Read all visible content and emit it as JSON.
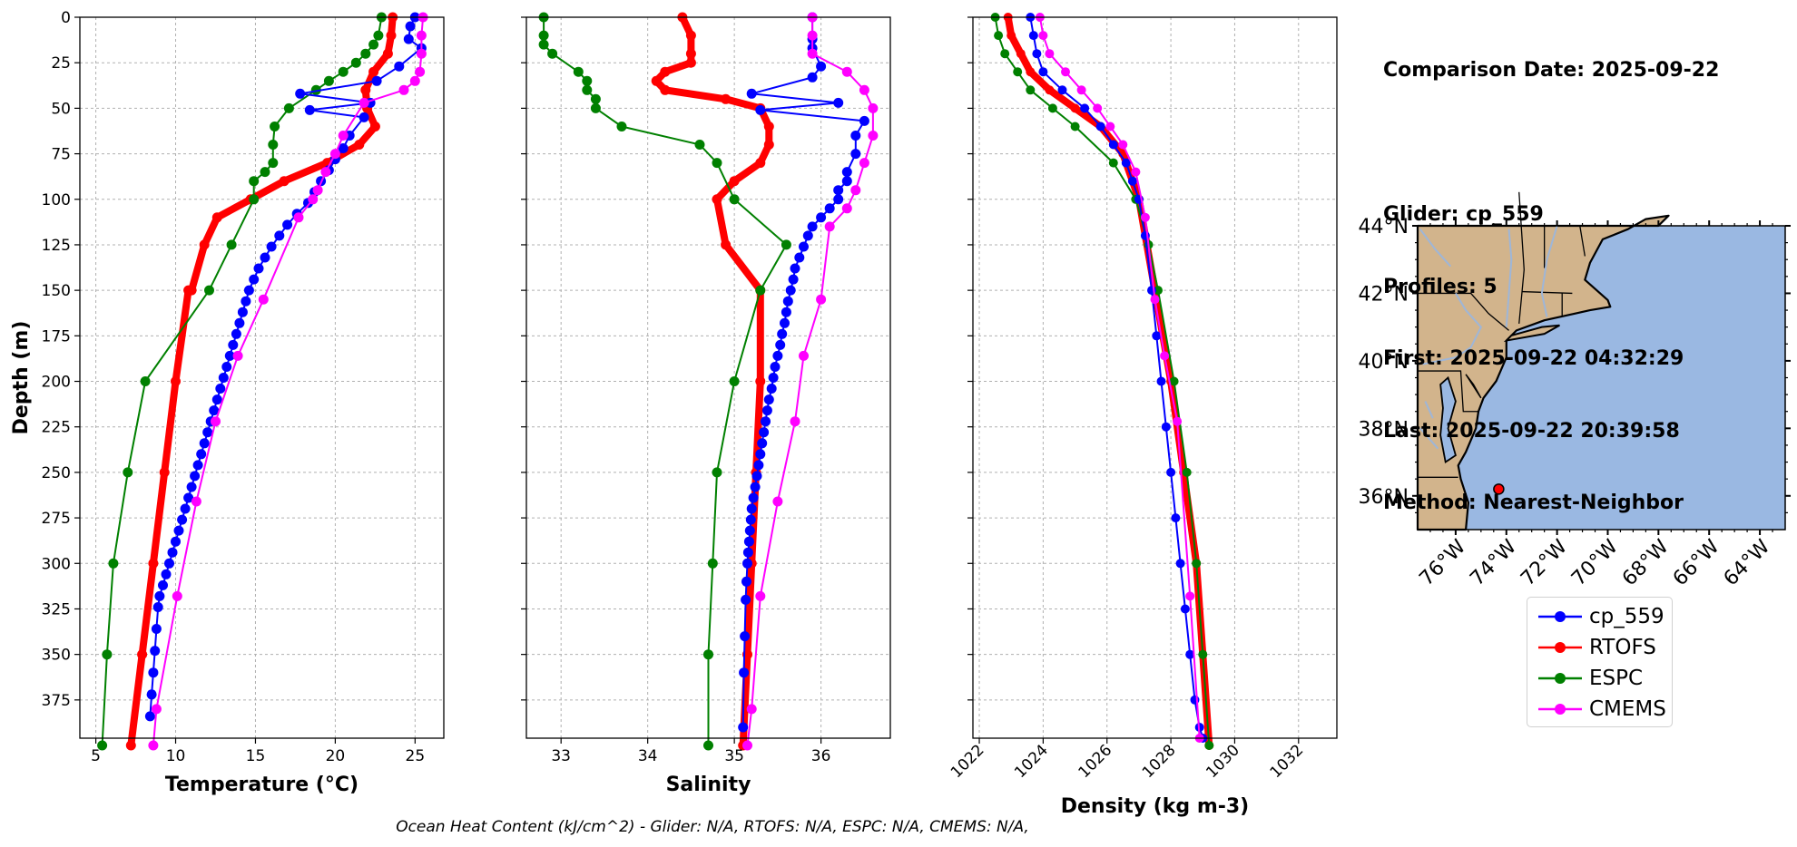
{
  "chart_data": [
    {
      "type": "line",
      "xlabel": "Temperature (°C)",
      "ylabel": "Depth (m)",
      "xlim": [
        4,
        26.8
      ],
      "ylim": [
        396,
        0
      ],
      "xticks": [
        5,
        10,
        15,
        20,
        25
      ],
      "yticks": [
        0,
        25,
        50,
        75,
        100,
        125,
        150,
        175,
        200,
        225,
        250,
        275,
        300,
        325,
        350,
        375
      ],
      "grid": true,
      "series": [
        {
          "name": "cp_559",
          "color": "#0000ff",
          "x": [
            25.0,
            24.7,
            24.6,
            25.4,
            24.0,
            22.6,
            17.8,
            22.2,
            18.4,
            21.8,
            20.9,
            20.5,
            20.0,
            19.6,
            19.1,
            18.7,
            18.3,
            17.6,
            17.0,
            16.5,
            16.0,
            15.6,
            15.2,
            14.9,
            14.6,
            14.4,
            14.2,
            14.0,
            13.8,
            13.6,
            13.4,
            13.2,
            13.0,
            12.8,
            12.6,
            12.4,
            12.2,
            12.0,
            11.8,
            11.6,
            11.4,
            11.2,
            11.0,
            10.8,
            10.6,
            10.4,
            10.2,
            10.0,
            9.8,
            9.6,
            9.4,
            9.2,
            9.0,
            8.9,
            8.8,
            8.7,
            8.6,
            8.5,
            8.4
          ],
          "y": [
            0,
            5,
            12,
            17,
            27,
            35,
            42,
            47,
            51,
            55,
            65,
            72,
            78,
            84,
            90,
            96,
            102,
            108,
            114,
            120,
            126,
            132,
            138,
            144,
            150,
            156,
            162,
            168,
            174,
            180,
            186,
            192,
            198,
            204,
            210,
            216,
            222,
            228,
            234,
            240,
            246,
            252,
            258,
            264,
            270,
            276,
            282,
            288,
            294,
            300,
            306,
            312,
            318,
            324,
            336,
            348,
            360,
            372,
            384
          ]
        },
        {
          "name": "RTOFS",
          "color": "#ff0000",
          "x": [
            23.6,
            23.5,
            23.3,
            22.4,
            21.9,
            22.0,
            22.5,
            21.5,
            19.5,
            16.8,
            14.7,
            12.6,
            11.8,
            11.0,
            10.8,
            10.0,
            9.3,
            8.6,
            7.9,
            7.2
          ],
          "y": [
            0,
            10,
            20,
            30,
            40,
            50,
            60,
            70,
            80,
            90,
            100,
            110,
            125,
            150,
            150,
            200,
            250,
            300,
            350,
            400
          ]
        },
        {
          "name": "ESPC",
          "color": "#008000",
          "x": [
            22.9,
            22.7,
            22.4,
            21.9,
            21.3,
            20.5,
            19.6,
            18.8,
            17.1,
            16.2,
            16.1,
            16.1,
            15.6,
            14.9,
            14.9,
            13.5,
            12.1,
            8.1,
            7.0,
            6.1,
            5.7,
            5.4
          ],
          "y": [
            0,
            10,
            15,
            20,
            25,
            30,
            35,
            40,
            50,
            60,
            70,
            80,
            85,
            90,
            100,
            125,
            150,
            200,
            250,
            300,
            350,
            400
          ]
        },
        {
          "name": "CMEMS",
          "color": "#ff00ff",
          "x": [
            25.5,
            25.4,
            25.4,
            25.3,
            25.0,
            24.3,
            21.8,
            20.5,
            20.0,
            19.4,
            18.9,
            18.6,
            17.7,
            15.5,
            13.9,
            12.5,
            11.3,
            10.1,
            8.8,
            8.6
          ],
          "y": [
            0,
            10,
            20,
            30,
            35,
            40,
            47,
            65,
            75,
            85,
            95,
            100,
            110,
            155,
            186,
            222,
            266,
            318,
            380,
            400
          ]
        }
      ]
    },
    {
      "type": "line",
      "xlabel": "Salinity",
      "ylabel": "",
      "xlim": [
        32.6,
        36.8
      ],
      "ylim": [
        396,
        0
      ],
      "xticks": [
        33,
        34,
        35,
        36
      ],
      "yticks": [
        0,
        25,
        50,
        75,
        100,
        125,
        150,
        175,
        200,
        225,
        250,
        275,
        300,
        325,
        350,
        375
      ],
      "grid": true,
      "series": [
        {
          "name": "cp_559",
          "color": "#0000ff",
          "x": [
            35.9,
            35.9,
            35.9,
            36.0,
            35.9,
            35.2,
            36.2,
            35.3,
            36.5,
            36.4,
            36.4,
            36.3,
            36.3,
            36.2,
            36.2,
            36.1,
            36.0,
            35.9,
            35.85,
            35.8,
            35.75,
            35.7,
            35.68,
            35.65,
            35.62,
            35.6,
            35.58,
            35.55,
            35.53,
            35.5,
            35.47,
            35.45,
            35.43,
            35.4,
            35.38,
            35.36,
            35.34,
            35.32,
            35.3,
            35.28,
            35.26,
            35.24,
            35.22,
            35.2,
            35.19,
            35.18,
            35.17,
            35.16,
            35.15,
            35.14,
            35.13,
            35.12,
            35.11,
            35.1
          ],
          "y": [
            0,
            12,
            17,
            27,
            33,
            42,
            47,
            51,
            57,
            65,
            75,
            85,
            90,
            95,
            100,
            105,
            110,
            115,
            120,
            126,
            132,
            138,
            144,
            150,
            156,
            162,
            168,
            174,
            180,
            186,
            192,
            198,
            204,
            210,
            216,
            222,
            228,
            234,
            240,
            246,
            252,
            258,
            264,
            270,
            276,
            282,
            288,
            294,
            300,
            310,
            320,
            340,
            360,
            390
          ]
        },
        {
          "name": "RTOFS",
          "color": "#ff0000",
          "x": [
            34.4,
            34.5,
            34.5,
            34.5,
            34.2,
            34.1,
            34.2,
            34.9,
            35.3,
            35.4,
            35.4,
            35.3,
            35.0,
            34.8,
            34.9,
            35.3,
            35.3,
            35.25,
            35.2,
            35.15,
            35.1
          ],
          "y": [
            0,
            10,
            20,
            25,
            30,
            35,
            40,
            45,
            50,
            60,
            70,
            80,
            90,
            100,
            125,
            150,
            200,
            250,
            300,
            350,
            400
          ]
        },
        {
          "name": "ESPC",
          "color": "#008000",
          "x": [
            32.8,
            32.8,
            32.8,
            32.9,
            33.2,
            33.3,
            33.3,
            33.4,
            33.4,
            33.7,
            34.6,
            34.8,
            35.0,
            35.6,
            35.3,
            35.0,
            34.8,
            34.75,
            34.7,
            34.7
          ],
          "y": [
            0,
            10,
            15,
            20,
            30,
            35,
            40,
            45,
            50,
            60,
            70,
            80,
            100,
            125,
            150,
            200,
            250,
            300,
            350,
            400
          ]
        },
        {
          "name": "CMEMS",
          "color": "#ff00ff",
          "x": [
            35.9,
            35.9,
            35.9,
            36.3,
            36.5,
            36.6,
            36.6,
            36.5,
            36.4,
            36.3,
            36.1,
            36.0,
            35.8,
            35.7,
            35.5,
            35.3,
            35.2,
            35.15
          ],
          "y": [
            0,
            10,
            20,
            30,
            40,
            50,
            65,
            80,
            95,
            105,
            115,
            155,
            186,
            222,
            266,
            318,
            380,
            400
          ]
        }
      ]
    },
    {
      "type": "line",
      "xlabel": "Density (kg m-3)",
      "ylabel": "",
      "xlim": [
        1021.8,
        1033.2
      ],
      "ylim": [
        396,
        0
      ],
      "xticks": [
        1022,
        1024,
        1026,
        1028,
        1030,
        1032
      ],
      "yticks": [
        0,
        25,
        50,
        75,
        100,
        125,
        150,
        175,
        200,
        225,
        250,
        275,
        300,
        325,
        350,
        375
      ],
      "grid": true,
      "series": [
        {
          "name": "cp_559",
          "color": "#0000ff",
          "x": [
            1023.6,
            1023.7,
            1023.8,
            1024.0,
            1024.6,
            1025.3,
            1025.8,
            1026.2,
            1026.6,
            1026.8,
            1027.0,
            1027.2,
            1027.4,
            1027.55,
            1027.7,
            1027.85,
            1028.0,
            1028.15,
            1028.3,
            1028.45,
            1028.6,
            1028.75,
            1028.9,
            1029.0
          ],
          "y": [
            0,
            10,
            20,
            30,
            40,
            50,
            60,
            70,
            80,
            90,
            100,
            120,
            150,
            175,
            200,
            225,
            250,
            275,
            300,
            325,
            350,
            375,
            390,
            396
          ]
        },
        {
          "name": "RTOFS",
          "color": "#ff0000",
          "x": [
            1022.9,
            1023.0,
            1023.3,
            1023.6,
            1024.2,
            1025.0,
            1025.8,
            1026.5,
            1027.0,
            1027.5,
            1028.0,
            1028.4,
            1028.8,
            1029.2
          ],
          "y": [
            0,
            10,
            20,
            30,
            40,
            50,
            60,
            75,
            100,
            150,
            200,
            250,
            300,
            400
          ]
        },
        {
          "name": "ESPC",
          "color": "#008000",
          "x": [
            1022.5,
            1022.6,
            1022.8,
            1023.2,
            1023.6,
            1024.3,
            1025.0,
            1026.2,
            1026.9,
            1027.3,
            1027.6,
            1028.1,
            1028.5,
            1028.8,
            1029.0,
            1029.2
          ],
          "y": [
            0,
            10,
            20,
            30,
            40,
            50,
            60,
            80,
            100,
            125,
            150,
            200,
            250,
            300,
            350,
            400
          ]
        },
        {
          "name": "CMEMS",
          "color": "#ff00ff",
          "x": [
            1023.9,
            1024.0,
            1024.2,
            1024.7,
            1025.2,
            1025.7,
            1026.1,
            1026.5,
            1026.9,
            1027.2,
            1027.5,
            1027.8,
            1028.2,
            1028.6,
            1028.9
          ],
          "y": [
            0,
            10,
            20,
            30,
            40,
            50,
            60,
            70,
            85,
            110,
            155,
            186,
            222,
            318,
            396
          ]
        }
      ]
    }
  ],
  "map": {
    "lon_range": [
      -77.5,
      -63.0
    ],
    "lat_range": [
      35.0,
      44.0
    ],
    "lat_ticks": [
      "44°N",
      "42°N",
      "40°N",
      "38°N",
      "36°N"
    ],
    "lon_ticks": [
      "76°W",
      "74°W",
      "72°W",
      "70°W",
      "68°W",
      "66°W",
      "64°W"
    ],
    "ocean_color": "#9ab8e2",
    "land_color": "#d2b48c",
    "marker": {
      "lon": -74.3,
      "lat": 36.2,
      "color": "#ff0000"
    }
  },
  "info": {
    "comparison_date": "Comparison Date: 2025-09-22",
    "glider": "Glider: cp_559",
    "profiles": "Profiles: 5",
    "first": "First: 2025-09-22 04:32:29",
    "last": "Last: 2025-09-22 20:39:58",
    "method": "Method: Nearest-Neighbor"
  },
  "legend": [
    {
      "label": "cp_559",
      "color": "#0000ff"
    },
    {
      "label": "RTOFS",
      "color": "#ff0000"
    },
    {
      "label": "ESPC",
      "color": "#008000"
    },
    {
      "label": "CMEMS",
      "color": "#ff00ff"
    }
  ],
  "footer": "Ocean Heat Content (kJ/cm^2) - Glider: N/A,  RTOFS: N/A,  ESPC: N/A,  CMEMS: N/A,"
}
